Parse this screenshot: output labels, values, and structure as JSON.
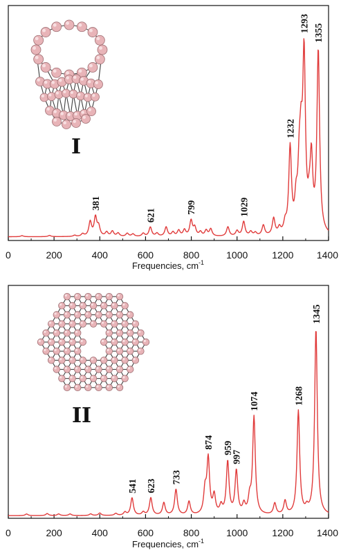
{
  "chart_data": [
    {
      "type": "line",
      "id": "I",
      "panel_label": "I",
      "xlabel": "Frequencies, cm",
      "xlabel_sup": "-1",
      "xlim": [
        0,
        1400
      ],
      "x_ticks": [
        0,
        200,
        400,
        600,
        800,
        1000,
        1200,
        1400
      ],
      "ylim": [
        0,
        1
      ],
      "y_tick_labels_shown": false,
      "line_color": "#e03a3a",
      "baseline": 0.008,
      "peak_labels": [
        381,
        621,
        799,
        1029,
        1232,
        1293,
        1355
      ],
      "peaks": [
        [
          60,
          0.005
        ],
        [
          180,
          0.006
        ],
        [
          290,
          0.006
        ],
        [
          325,
          0.012
        ],
        [
          358,
          0.07
        ],
        [
          381,
          0.09
        ],
        [
          395,
          0.045
        ],
        [
          430,
          0.02
        ],
        [
          455,
          0.025
        ],
        [
          480,
          0.016
        ],
        [
          520,
          0.015
        ],
        [
          545,
          0.012
        ],
        [
          590,
          0.015
        ],
        [
          621,
          0.045
        ],
        [
          650,
          0.015
        ],
        [
          690,
          0.045
        ],
        [
          720,
          0.02
        ],
        [
          745,
          0.028
        ],
        [
          770,
          0.03
        ],
        [
          799,
          0.075
        ],
        [
          815,
          0.04
        ],
        [
          840,
          0.02
        ],
        [
          865,
          0.028
        ],
        [
          885,
          0.035
        ],
        [
          960,
          0.045
        ],
        [
          1000,
          0.025
        ],
        [
          1029,
          0.07
        ],
        [
          1060,
          0.02
        ],
        [
          1080,
          0.015
        ],
        [
          1115,
          0.05
        ],
        [
          1160,
          0.08
        ],
        [
          1185,
          0.03
        ],
        [
          1210,
          0.045
        ],
        [
          1232,
          0.41
        ],
        [
          1258,
          0.13
        ],
        [
          1272,
          0.25
        ],
        [
          1280,
          0.32
        ],
        [
          1293,
          0.82
        ],
        [
          1315,
          0.08
        ],
        [
          1325,
          0.33
        ],
        [
          1355,
          0.88
        ]
      ]
    },
    {
      "type": "line",
      "id": "II",
      "panel_label": "II",
      "xlabel": "Frequencies, cm",
      "xlabel_sup": "-1",
      "xlim": [
        0,
        1400
      ],
      "x_ticks": [
        0,
        200,
        400,
        600,
        800,
        1000,
        1200,
        1400
      ],
      "ylim": [
        0,
        1
      ],
      "y_tick_labels_shown": false,
      "line_color": "#e03a3a",
      "baseline": 0.006,
      "peak_labels": [
        541,
        623,
        733,
        874,
        959,
        997,
        1074,
        1268,
        1345
      ],
      "peaks": [
        [
          80,
          0.008
        ],
        [
          170,
          0.01
        ],
        [
          220,
          0.008
        ],
        [
          270,
          0.008
        ],
        [
          360,
          0.008
        ],
        [
          400,
          0.012
        ],
        [
          470,
          0.01
        ],
        [
          510,
          0.015
        ],
        [
          541,
          0.085
        ],
        [
          590,
          0.015
        ],
        [
          623,
          0.085
        ],
        [
          680,
          0.06
        ],
        [
          733,
          0.125
        ],
        [
          790,
          0.065
        ],
        [
          860,
          0.11
        ],
        [
          874,
          0.265
        ],
        [
          900,
          0.09
        ],
        [
          930,
          0.04
        ],
        [
          959,
          0.255
        ],
        [
          997,
          0.21
        ],
        [
          1030,
          0.045
        ],
        [
          1055,
          0.07
        ],
        [
          1074,
          0.47
        ],
        [
          1165,
          0.055
        ],
        [
          1210,
          0.065
        ],
        [
          1268,
          0.5
        ],
        [
          1305,
          0.025
        ],
        [
          1345,
          0.9
        ]
      ]
    }
  ],
  "panels": [
    {
      "id_label": "I",
      "xlabel": "Frequencies, cm",
      "xlabel_sup": "-1",
      "tick_labels": [
        "0",
        "200",
        "400",
        "600",
        "800",
        "1000",
        "1200",
        "1400"
      ],
      "peak_labels": [
        "381",
        "621",
        "799",
        "1029",
        "1232",
        "1293",
        "1355"
      ]
    },
    {
      "id_label": "II",
      "xlabel": "Frequencies, cm",
      "xlabel_sup": "-1",
      "tick_labels": [
        "0",
        "200",
        "400",
        "600",
        "800",
        "1000",
        "1200",
        "1400"
      ],
      "peak_labels": [
        "541",
        "623",
        "733",
        "874",
        "959",
        "997",
        "1074",
        "1268",
        "1345"
      ]
    }
  ],
  "colors": {
    "spectrum": "#e03a3a",
    "atom_fill": "#e8b4b8",
    "atom_edge": "#9e6e72",
    "bond": "#3d3d3d",
    "axis": "#111111"
  }
}
